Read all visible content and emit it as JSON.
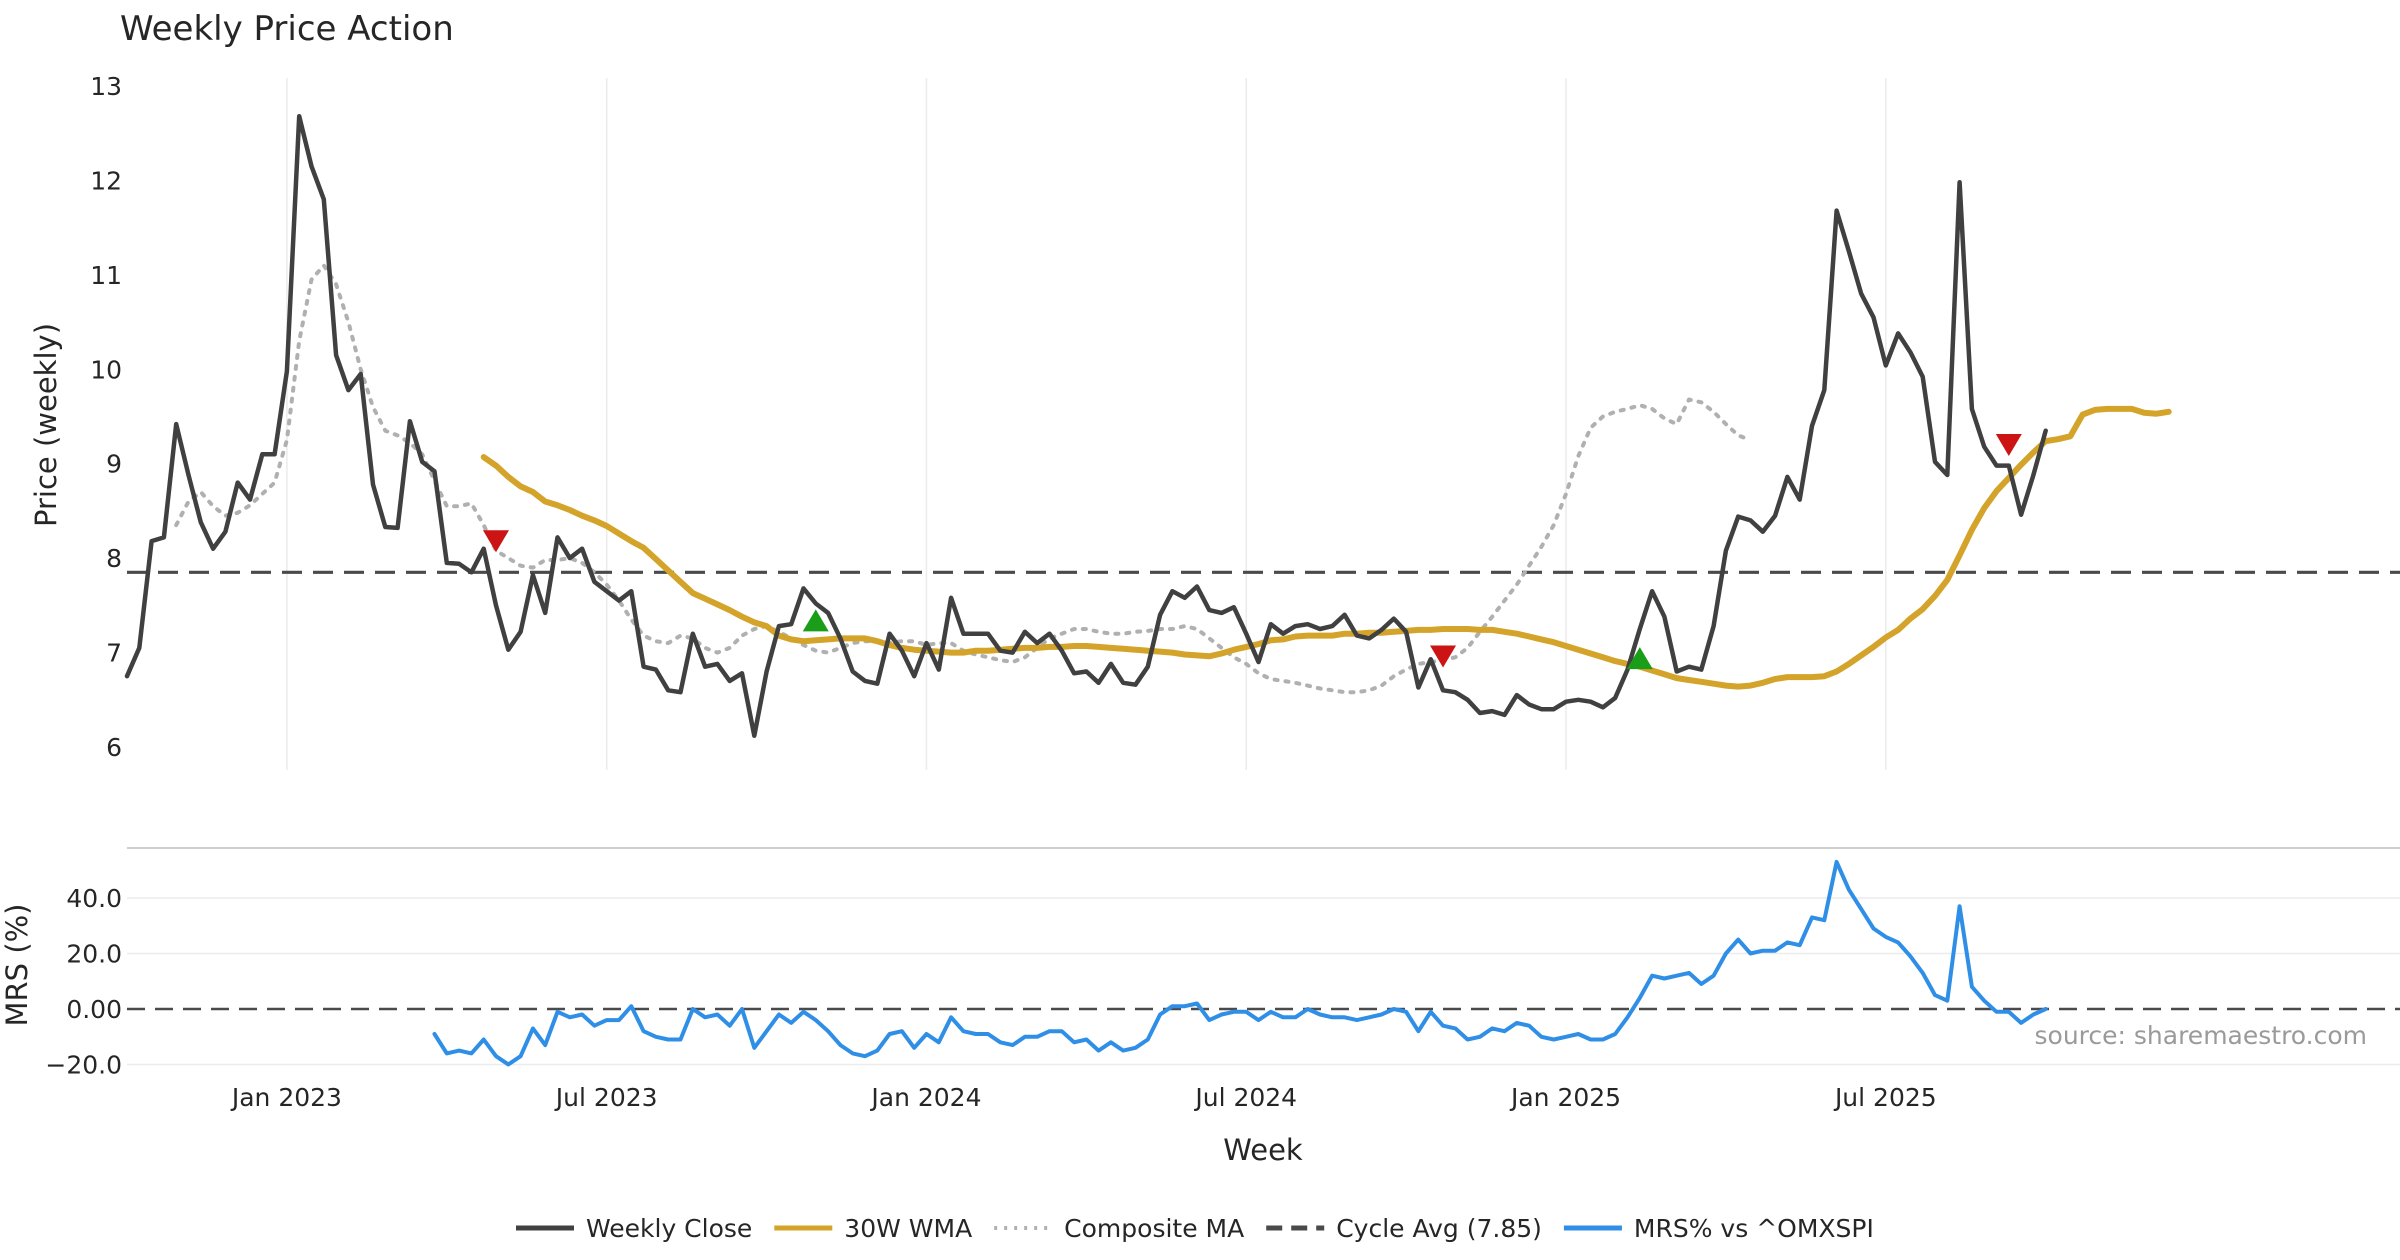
{
  "chart_data": [
    {
      "type": "line",
      "title": "Weekly Price Action",
      "xlabel": "",
      "ylabel": "Price (weekly)",
      "ylim": [
        5.8,
        13.1
      ],
      "yticks": [
        6,
        7,
        8,
        9,
        10,
        11,
        12,
        13
      ],
      "xticks": [
        {
          "label": "Jan 2023",
          "week": 13
        },
        {
          "label": "Jul 2023",
          "week": 39
        },
        {
          "label": "Jan 2024",
          "week": 65
        },
        {
          "label": "Jul 2024",
          "week": 91
        },
        {
          "label": "Jan 2025",
          "week": 117
        },
        {
          "label": "Jul 2025",
          "week": 143
        }
      ],
      "grid": true,
      "series": [
        {
          "name": "Weekly Close",
          "color": "#404040",
          "start_week": 0,
          "values": [
            6.75,
            7.05,
            8.18,
            8.22,
            9.42,
            8.88,
            8.38,
            8.1,
            8.28,
            8.8,
            8.62,
            9.1,
            9.1,
            9.98,
            12.68,
            12.15,
            11.8,
            10.15,
            9.78,
            9.95,
            8.78,
            8.33,
            8.32,
            9.45,
            9.02,
            8.92,
            7.95,
            7.94,
            7.85,
            8.1,
            7.5,
            7.03,
            7.22,
            7.82,
            7.42,
            8.22,
            8.0,
            8.1,
            7.75,
            7.65,
            7.55,
            7.65,
            6.85,
            6.82,
            6.6,
            6.58,
            7.2,
            6.85,
            6.88,
            6.7,
            6.78,
            6.12,
            6.8,
            7.28,
            7.3,
            7.68,
            7.52,
            7.42,
            7.15,
            6.8,
            6.7,
            6.67,
            7.2,
            7.02,
            6.75,
            7.1,
            6.82,
            7.58,
            7.2,
            7.2,
            7.2,
            7.02,
            7.0,
            7.22,
            7.1,
            7.2,
            7.02,
            6.78,
            6.8,
            6.68,
            6.88,
            6.68,
            6.66,
            6.85,
            7.4,
            7.65,
            7.58,
            7.7,
            7.45,
            7.42,
            7.48,
            7.2,
            6.9,
            7.3,
            7.2,
            7.28,
            7.3,
            7.25,
            7.28,
            7.4,
            7.18,
            7.15,
            7.24,
            7.36,
            7.22,
            6.63,
            6.93,
            6.6,
            6.58,
            6.5,
            6.36,
            6.38,
            6.34,
            6.55,
            6.45,
            6.4,
            6.4,
            6.48,
            6.5,
            6.48,
            6.42,
            6.52,
            6.82,
            7.25,
            7.65,
            7.38,
            6.8,
            6.85,
            6.82,
            7.28,
            8.08,
            8.44,
            8.4,
            8.28,
            8.45,
            8.86,
            8.62,
            9.4,
            9.78,
            11.68,
            11.25,
            10.8,
            10.55,
            10.04,
            10.38,
            10.18,
            9.92,
            9.02,
            8.88,
            11.98,
            9.58,
            9.18,
            8.98,
            8.98,
            8.46,
            8.88,
            9.35
          ]
        },
        {
          "name": "30W WMA",
          "color": "#d4a329",
          "start_week": 29,
          "values": [
            9.07,
            8.98,
            8.86,
            8.76,
            8.7,
            8.6,
            8.56,
            8.51,
            8.45,
            8.4,
            8.34,
            8.26,
            8.18,
            8.11,
            7.99,
            7.87,
            7.75,
            7.63,
            7.57,
            7.51,
            7.45,
            7.38,
            7.32,
            7.28,
            7.18,
            7.14,
            7.12,
            7.13,
            7.14,
            7.15,
            7.15,
            7.15,
            7.12,
            7.08,
            7.05,
            7.03,
            7.02,
            7.01,
            7.0,
            7.0,
            7.02,
            7.02,
            7.03,
            7.04,
            7.05,
            7.05,
            7.06,
            7.06,
            7.07,
            7.07,
            7.06,
            7.05,
            7.04,
            7.03,
            7.02,
            7.01,
            7.0,
            6.98,
            6.97,
            6.96,
            6.99,
            7.03,
            7.06,
            7.09,
            7.13,
            7.14,
            7.17,
            7.18,
            7.18,
            7.18,
            7.2,
            7.2,
            7.21,
            7.21,
            7.22,
            7.23,
            7.24,
            7.24,
            7.25,
            7.25,
            7.25,
            7.24,
            7.24,
            7.22,
            7.2,
            7.17,
            7.14,
            7.11,
            7.07,
            7.03,
            6.99,
            6.95,
            6.91,
            6.88,
            6.85,
            6.81,
            6.77,
            6.73,
            6.71,
            6.69,
            6.67,
            6.65,
            6.64,
            6.65,
            6.68,
            6.72,
            6.74,
            6.74,
            6.74,
            6.75,
            6.8,
            6.88,
            6.97,
            7.06,
            7.16,
            7.24,
            7.36,
            7.46,
            7.6,
            7.77,
            8.03,
            8.3,
            8.53,
            8.71,
            8.85,
            8.99,
            9.12,
            9.24,
            9.26,
            9.29,
            9.52,
            9.57,
            9.58,
            9.58,
            9.58,
            9.54,
            9.53,
            9.55
          ]
        },
        {
          "name": "Composite MA",
          "color": "#b0b0b0",
          "start_week": 4,
          "values": [
            8.35,
            8.6,
            8.7,
            8.55,
            8.45,
            8.48,
            8.56,
            8.68,
            8.8,
            9.25,
            10.3,
            10.95,
            11.1,
            10.9,
            10.5,
            10.0,
            9.6,
            9.35,
            9.3,
            9.22,
            9.1,
            8.82,
            8.55,
            8.55,
            8.58,
            8.35,
            8.08,
            8.0,
            7.92,
            7.9,
            7.98,
            7.98,
            8.0,
            7.95,
            7.85,
            7.72,
            7.55,
            7.35,
            7.18,
            7.12,
            7.1,
            7.18,
            7.15,
            7.05,
            7.0,
            7.05,
            7.18,
            7.25,
            7.28,
            7.22,
            7.15,
            7.08,
            7.02,
            7.0,
            7.05,
            7.1,
            7.12,
            7.12,
            7.1,
            7.12,
            7.12,
            7.08,
            7.1,
            7.1,
            7.02,
            6.98,
            6.95,
            6.92,
            6.9,
            6.95,
            7.05,
            7.15,
            7.2,
            7.25,
            7.25,
            7.22,
            7.2,
            7.2,
            7.22,
            7.23,
            7.25,
            7.25,
            7.28,
            7.25,
            7.15,
            7.05,
            6.95,
            6.88,
            6.78,
            6.72,
            6.7,
            6.68,
            6.65,
            6.62,
            6.6,
            6.58,
            6.58,
            6.6,
            6.65,
            6.75,
            6.82,
            6.88,
            6.9,
            6.92,
            6.95,
            7.05,
            7.22,
            7.38,
            7.55,
            7.72,
            7.92,
            8.12,
            8.35,
            8.68,
            9.08,
            9.38,
            9.5,
            9.55,
            9.58,
            9.62,
            9.58,
            9.48,
            9.42,
            9.68,
            9.65,
            9.55,
            9.42,
            9.3,
            9.25
          ]
        }
      ],
      "reference_lines": [
        {
          "name": "Cycle Avg (7.85)",
          "value": 7.85,
          "color": "#4a4a4a"
        }
      ],
      "signals": [
        {
          "type": "sell",
          "week": 30,
          "value": 8.2,
          "color": "#cc1414"
        },
        {
          "type": "buy",
          "week": 56,
          "value": 7.32,
          "color": "#1a9e1a"
        },
        {
          "type": "sell",
          "week": 107,
          "value": 6.98,
          "color": "#cc1414"
        },
        {
          "type": "buy",
          "week": 123,
          "value": 6.92,
          "color": "#1a9e1a"
        },
        {
          "type": "sell",
          "week": 153,
          "value": 9.22,
          "color": "#cc1414"
        }
      ]
    },
    {
      "type": "line",
      "title": "",
      "xlabel": "Week",
      "ylabel": "MRS (%)",
      "ylim": [
        -21.5,
        56
      ],
      "yticks": [
        {
          "value": 40,
          "label": "40.0"
        },
        {
          "value": 20,
          "label": "20.0"
        },
        {
          "value": 0,
          "label": "0.00"
        },
        {
          "value": -20,
          "label": "−20.0"
        }
      ],
      "grid": true,
      "reference_lines": [
        {
          "name": "zero",
          "value": 0,
          "color": "#4a4a4a"
        }
      ],
      "series": [
        {
          "name": "MRS% vs ^OMXSPI",
          "color": "#2f8fe6",
          "start_week": 25,
          "values": [
            -9,
            -16,
            -15,
            -16,
            -11,
            -17,
            -20,
            -17,
            -7,
            -13,
            -1,
            -3,
            -2,
            -6,
            -4,
            -4,
            1,
            -8,
            -10,
            -11,
            -11,
            0,
            -3,
            -2,
            -6,
            0,
            -14,
            -8,
            -2,
            -5,
            -1,
            -4,
            -8,
            -13,
            -16,
            -17,
            -15,
            -9,
            -8,
            -14,
            -9,
            -12,
            -3,
            -8,
            -9,
            -9,
            -12,
            -13,
            -10,
            -10,
            -8,
            -8,
            -12,
            -11,
            -15,
            -12,
            -15,
            -14,
            -11,
            -2,
            1,
            1,
            2,
            -4,
            -2,
            -1,
            -1,
            -4,
            -1,
            -3,
            -3,
            0,
            -2,
            -3,
            -3,
            -4,
            -3,
            -2,
            0,
            -1,
            -8,
            -1,
            -6,
            -7,
            -11,
            -10,
            -7,
            -8,
            -5,
            -6,
            -10,
            -11,
            -10,
            -9,
            -11,
            -11,
            -9,
            -3,
            4,
            12,
            11,
            12,
            13,
            9,
            12,
            20,
            25,
            20,
            21,
            21,
            24,
            23,
            33,
            32,
            53,
            43,
            36,
            29,
            26,
            24,
            19,
            13,
            5,
            3,
            37,
            8,
            3,
            -1,
            -1,
            -5,
            -2,
            0
          ]
        }
      ],
      "annotations": [
        {
          "text": "source: sharemaestro.com"
        }
      ]
    }
  ],
  "legend": {
    "placement": "bottom-center",
    "items": [
      {
        "label": "Weekly Close",
        "color": "#404040",
        "style": "solid"
      },
      {
        "label": "30W WMA",
        "color": "#d4a329",
        "style": "solid"
      },
      {
        "label": "Composite MA",
        "color": "#b0b0b0",
        "style": "dotted"
      },
      {
        "label": "Cycle Avg (7.85)",
        "color": "#4a4a4a",
        "style": "dashed"
      },
      {
        "label": "MRS% vs ^OMXSPI",
        "color": "#2f8fe6",
        "style": "solid"
      }
    ]
  }
}
